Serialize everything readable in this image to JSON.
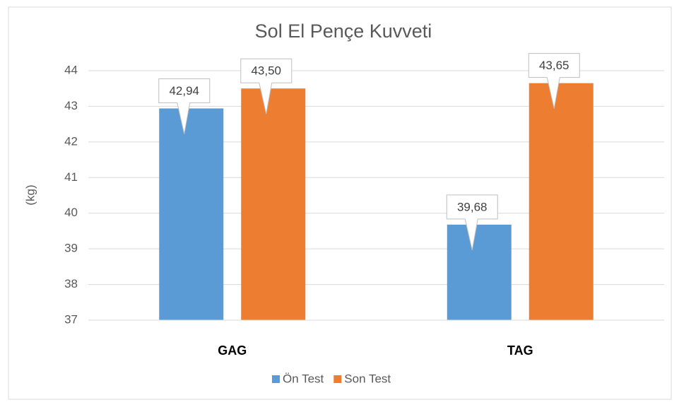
{
  "chart_data": {
    "type": "bar",
    "title": "Sol El Pençe Kuvveti",
    "y_label": "(kg)",
    "categories": [
      "GAG",
      "TAG"
    ],
    "series": [
      {
        "name": "Ön Test",
        "color": "#5b9bd5",
        "values": [
          42.94,
          39.68
        ],
        "value_labels": [
          "42,94",
          "39,68"
        ]
      },
      {
        "name": "Son Test",
        "color": "#ed7d31",
        "values": [
          43.5,
          43.65
        ],
        "value_labels": [
          "43,50",
          "43,65"
        ]
      }
    ],
    "ylim": [
      37,
      44
    ],
    "yticks": [
      37,
      38,
      39,
      40,
      41,
      42,
      43,
      44
    ],
    "grid": true,
    "legend": "bottom"
  }
}
